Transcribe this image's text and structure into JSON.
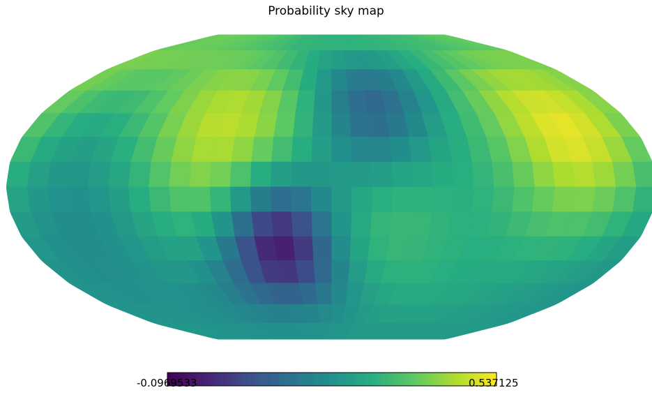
{
  "chart_data": {
    "type": "heatmap",
    "title": "Probability sky map",
    "projection": "mollweide",
    "colormap": "viridis",
    "colorbar": {
      "min_label": "-0.0969533",
      "max_label": "0.537125",
      "min": -0.0969533,
      "max": 0.537125,
      "orientation": "horizontal"
    },
    "description_of_field": "HEALPix-style pixelized sky map over longitude/latitude",
    "grid": false,
    "cells_lon": 32,
    "cells_lat": 16
  }
}
